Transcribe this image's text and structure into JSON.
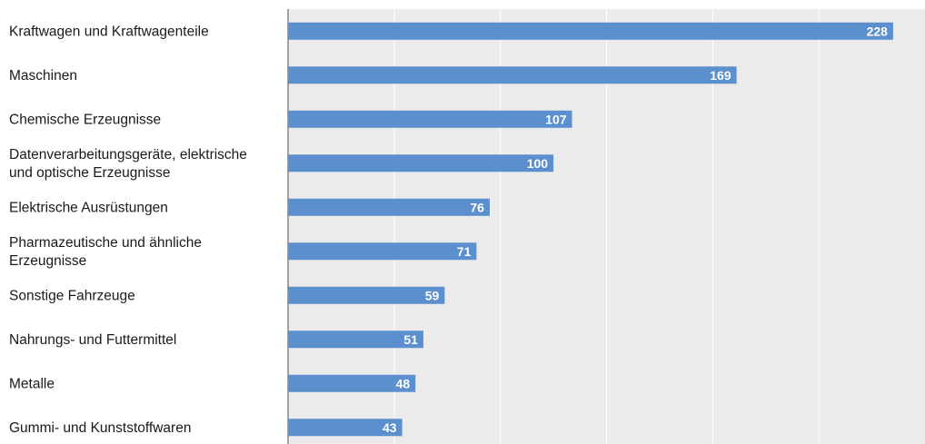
{
  "chart_data": {
    "type": "bar",
    "orientation": "horizontal",
    "categories": [
      "Kraftwagen und Kraftwagenteile",
      "Maschinen",
      "Chemische Erzeugnisse",
      "Datenverarbeitungsgeräte, elektrische und optische Erzeugnisse",
      "Elektrische Ausrüstungen",
      "Pharmazeutische und ähnliche Erzeugnisse",
      "Sonstige Fahrzeuge",
      "Nahrungs- und Futtermittel",
      "Metalle",
      "Gummi- und Kunststoffwaren"
    ],
    "category_lines": [
      [
        "Kraftwagen und Kraftwagenteile"
      ],
      [
        "Maschinen"
      ],
      [
        "Chemische Erzeugnisse"
      ],
      [
        "Datenverarbeitungsgeräte, elektrische",
        "und optische Erzeugnisse"
      ],
      [
        "Elektrische Ausrüstungen"
      ],
      [
        "Pharmazeutische und ähnliche",
        "Erzeugnisse"
      ],
      [
        "Sonstige Fahrzeuge"
      ],
      [
        "Nahrungs- und Futtermittel"
      ],
      [
        "Metalle"
      ],
      [
        "Gummi- und Kunststoffwaren"
      ]
    ],
    "values": [
      228,
      169,
      107,
      100,
      76,
      71,
      59,
      51,
      48,
      43
    ],
    "data_labels": [
      "228",
      "169",
      "107",
      "100",
      "76",
      "71",
      "59",
      "51",
      "48",
      "43"
    ],
    "xlim": [
      0,
      240
    ],
    "x_gridlines": [
      0,
      40,
      80,
      120,
      160,
      200,
      240
    ],
    "grid": true,
    "tick_labels_visible": false,
    "colors": {
      "bar": "#5b8fce",
      "plot_background": "#ebebeb",
      "gridline": "#ffffff",
      "axis": "#888888",
      "value_text": "#ffffff",
      "category_text": "#1a1a1a"
    }
  }
}
